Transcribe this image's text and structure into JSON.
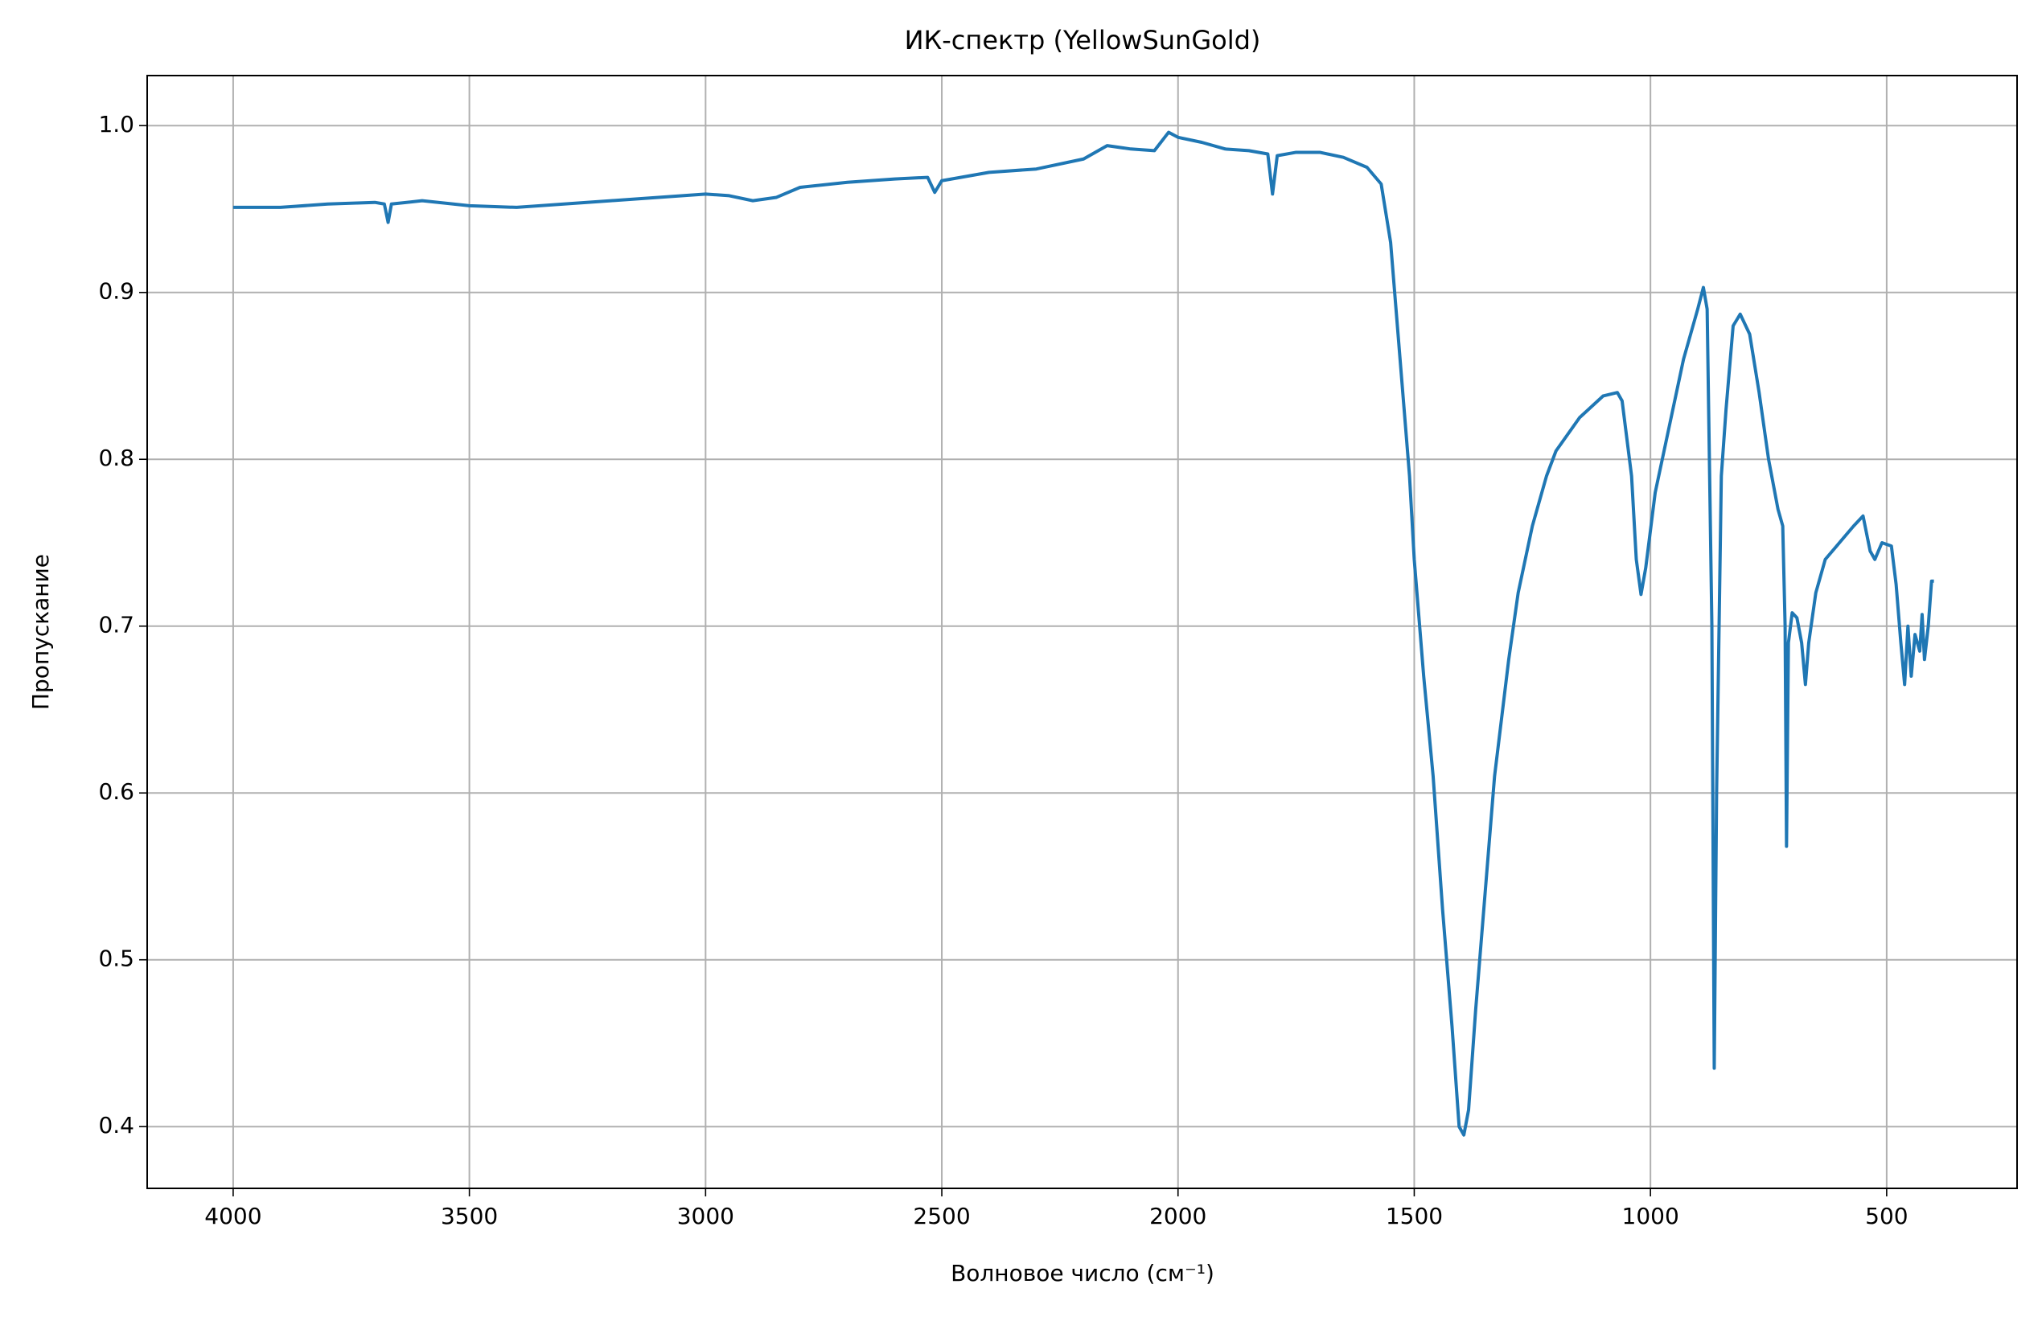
{
  "chart_data": {
    "type": "line",
    "title": "ИК-спектр (YellowSunGold)",
    "xlabel": "Волновое число (см⁻¹)",
    "ylabel": "Пропускание",
    "xlim": [
      4182,
      224
    ],
    "ylim": [
      0.363,
      1.03
    ],
    "xticks": [
      4000,
      3500,
      3000,
      2500,
      2000,
      1500,
      1000,
      500
    ],
    "yticks": [
      0.4,
      0.5,
      0.6,
      0.7,
      0.8,
      0.9,
      {
        "value": 1,
        "label": "1.0"
      }
    ],
    "grid": true,
    "x": [
      4000,
      3900,
      3800,
      3700,
      3680,
      3672,
      3665,
      3600,
      3500,
      3400,
      3300,
      3200,
      3100,
      3000,
      2950,
      2900,
      2850,
      2800,
      2700,
      2600,
      2530,
      2515,
      2500,
      2400,
      2300,
      2200,
      2150,
      2100,
      2050,
      2020,
      2000,
      1950,
      1900,
      1850,
      1810,
      1800,
      1790,
      1750,
      1700,
      1650,
      1600,
      1570,
      1550,
      1530,
      1510,
      1500,
      1480,
      1460,
      1440,
      1420,
      1405,
      1395,
      1385,
      1370,
      1350,
      1330,
      1300,
      1280,
      1250,
      1220,
      1200,
      1150,
      1100,
      1070,
      1060,
      1040,
      1030,
      1020,
      1010,
      990,
      960,
      930,
      900,
      888,
      880,
      870,
      865,
      860,
      850,
      840,
      825,
      810,
      790,
      770,
      750,
      730,
      720,
      715,
      712,
      708,
      700,
      690,
      680,
      672,
      665,
      650,
      630,
      600,
      570,
      550,
      535,
      525,
      510,
      490,
      480,
      470,
      462,
      455,
      448,
      440,
      430,
      425,
      420,
      412,
      405,
      400
    ],
    "series": [
      {
        "name": "Пропускание",
        "color": "#1f77b4",
        "values": [
          0.951,
          0.951,
          0.953,
          0.954,
          0.953,
          0.942,
          0.953,
          0.955,
          0.952,
          0.951,
          0.953,
          0.955,
          0.957,
          0.959,
          0.958,
          0.955,
          0.957,
          0.963,
          0.966,
          0.968,
          0.969,
          0.96,
          0.967,
          0.972,
          0.974,
          0.98,
          0.988,
          0.986,
          0.985,
          0.996,
          0.993,
          0.99,
          0.986,
          0.985,
          0.983,
          0.959,
          0.982,
          0.984,
          0.984,
          0.981,
          0.975,
          0.965,
          0.93,
          0.86,
          0.79,
          0.74,
          0.67,
          0.61,
          0.53,
          0.46,
          0.4,
          0.395,
          0.41,
          0.47,
          0.54,
          0.61,
          0.68,
          0.72,
          0.76,
          0.79,
          0.805,
          0.825,
          0.838,
          0.84,
          0.835,
          0.79,
          0.74,
          0.719,
          0.735,
          0.78,
          0.82,
          0.86,
          0.89,
          0.903,
          0.89,
          0.7,
          0.435,
          0.6,
          0.79,
          0.83,
          0.88,
          0.887,
          0.875,
          0.84,
          0.8,
          0.77,
          0.76,
          0.7,
          0.568,
          0.69,
          0.708,
          0.705,
          0.69,
          0.665,
          0.69,
          0.72,
          0.74,
          0.75,
          0.76,
          0.766,
          0.745,
          0.74,
          0.75,
          0.748,
          0.725,
          0.69,
          0.665,
          0.7,
          0.67,
          0.695,
          0.685,
          0.707,
          0.68,
          0.7,
          0.727,
          0.727
        ]
      }
    ]
  }
}
